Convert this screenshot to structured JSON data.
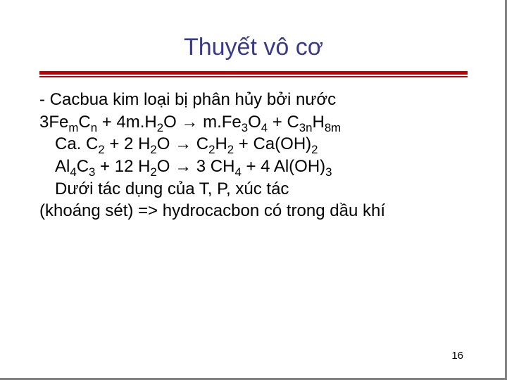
{
  "title": {
    "text": "Thuyết vô cơ",
    "color": "#3a3a8a",
    "fontsize": 34
  },
  "rule": {
    "thick_color": "#c00000",
    "thin_color": "#c00000"
  },
  "content": {
    "fontsize": 24,
    "color": "#000000",
    "lines": {
      "l1_prefix": "-  ",
      "l1": "Cacbua kim loại bị phân hủy bởi nước",
      "l2_a": "3Fe",
      "l2_b": "C",
      "l2_c": " + 4m.H",
      "l2_d": "O → m.Fe",
      "l2_e": "O",
      "l2_f": " + C",
      "l2_g": "H",
      "l2_sub_m": "m",
      "l2_sub_n": "n",
      "l2_sub_2a": "2",
      "l2_sub_3": "3",
      "l2_sub_4": "4",
      "l2_sub_3n": "3n",
      "l2_sub_8m": "8m",
      "l3_a": "Ca. C",
      "l3_b": "  +  2 H",
      "l3_c": "O   → C",
      "l3_d": "H",
      "l3_e": "  +  Ca(OH)",
      "l3_sub_2a": "2",
      "l3_sub_2b": "2",
      "l3_sub_2c": "2",
      "l3_sub_2d": "2",
      "l3_sub_2e": "2",
      "l4_a": "Al",
      "l4_b": "C",
      "l4_c": " + 12 H",
      "l4_d": "O   → 3 CH",
      "l4_e": "  +  4 Al(OH)",
      "l4_sub_4a": "4",
      "l4_sub_3a": "3",
      "l4_sub_2": "2",
      "l4_sub_4b": "4",
      "l4_sub_3b": "3",
      "l5": "Dưới tác dụng của T, P, xúc tác",
      "l6": "(khoáng sét) => hydrocacbon có trong dầu khí"
    }
  },
  "page_number": "16"
}
